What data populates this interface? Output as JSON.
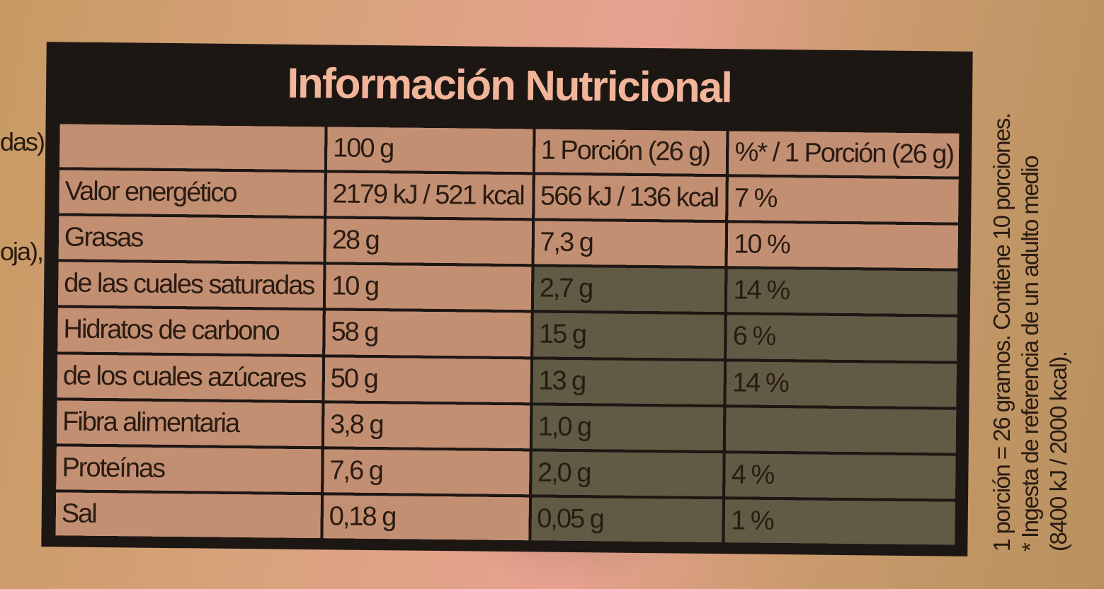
{
  "label": {
    "title": "Información Nutricional",
    "header": [
      null,
      "100 g",
      "1 Porción (26 g)",
      "%* / 1 Porción (26 g)"
    ],
    "rows": [
      [
        "Valor energético",
        "2179 kJ / 521 kcal",
        "566 kJ / 136 kcal",
        "7 %"
      ],
      [
        "Grasas",
        "28 g",
        "7,3 g",
        "10 %"
      ],
      [
        "de las cuales saturadas",
        "10 g",
        "2,7 g",
        "14 %"
      ],
      [
        "Hidratos de carbono",
        "58 g",
        "15 g",
        "6 %"
      ],
      [
        "de los cuales azúcares",
        "50 g",
        "13 g",
        "14 %"
      ],
      [
        "Fibra alimentaria",
        "3,8 g",
        "1,0 g",
        null
      ],
      [
        "Proteínas",
        "7,6 g",
        "2,0 g",
        "4 %"
      ],
      [
        "Sal",
        "0,18 g",
        "0,05 g",
        "1 %"
      ]
    ],
    "side_notes": [
      "1 porción = 26 gramos. Contiene 10 porciones.",
      "* Ingesta de referencia de un adulto medio",
      "(8400 kJ / 2000 kcal)."
    ],
    "edge_fragments": [
      "das),",
      "oja),"
    ]
  }
}
